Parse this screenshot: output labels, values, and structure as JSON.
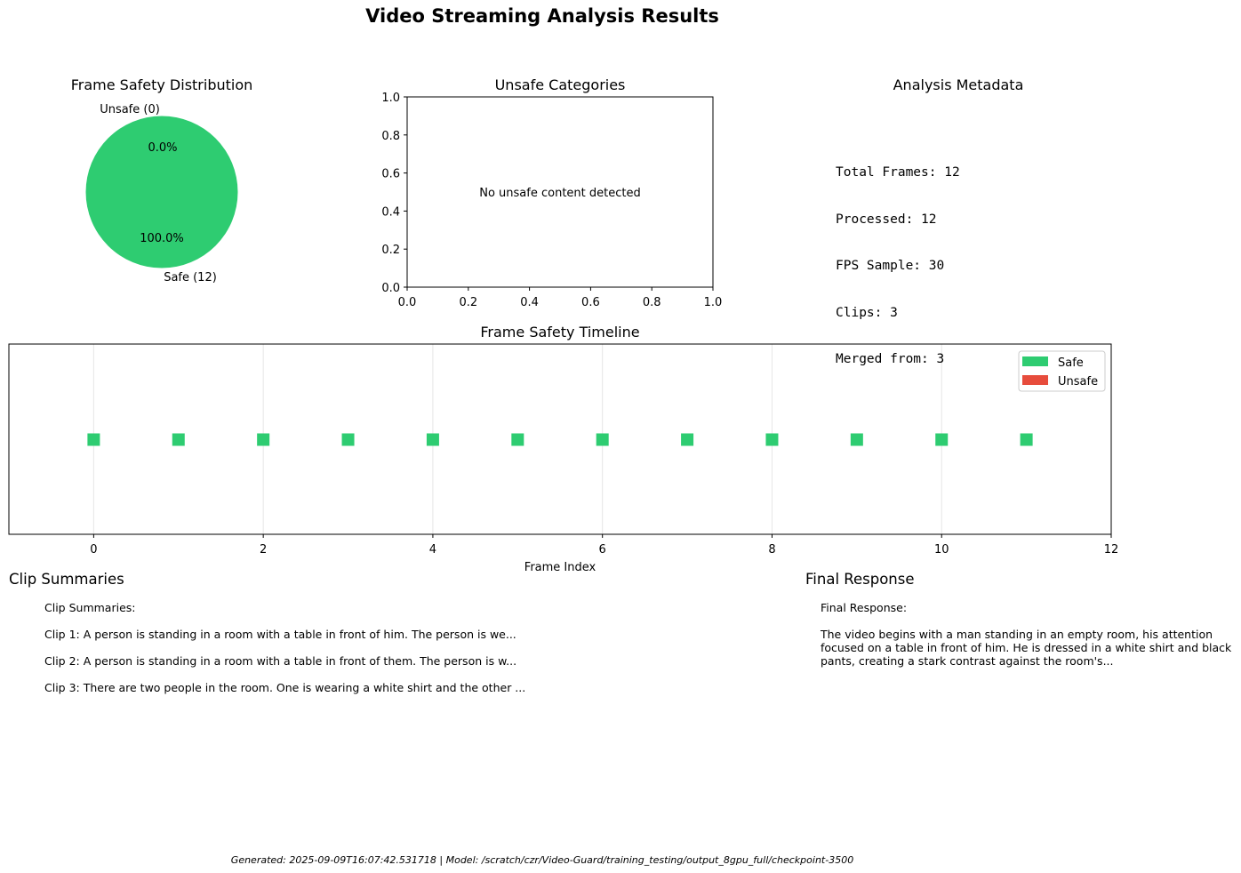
{
  "title": "Video Streaming Analysis Results",
  "colors": {
    "safe": "#2ecc71",
    "unsafe": "#e74c3c"
  },
  "pie": {
    "title": "Frame Safety Distribution",
    "labels": [
      "Unsafe (0)",
      "Safe (12)"
    ],
    "pct_labels": [
      "0.0%",
      "100.0%"
    ]
  },
  "categories_panel": {
    "title": "Unsafe Categories",
    "message": "No unsafe content detected",
    "xticks": [
      "0.0",
      "0.2",
      "0.4",
      "0.6",
      "0.8",
      "1.0"
    ],
    "yticks": [
      "0.0",
      "0.2",
      "0.4",
      "0.6",
      "0.8",
      "1.0"
    ]
  },
  "metadata": {
    "title": "Analysis Metadata",
    "lines": [
      "Total Frames: 12",
      "Processed: 12",
      "FPS Sample: 30",
      "Clips: 3",
      "Merged from: 3"
    ]
  },
  "timeline": {
    "title": "Frame Safety Timeline",
    "xlabel": "Frame Index",
    "xticks": [
      "0",
      "2",
      "4",
      "6",
      "8",
      "10",
      "12"
    ],
    "legend": [
      "Safe",
      "Unsafe"
    ]
  },
  "clip_summaries": {
    "heading": "Clip Summaries",
    "lines": [
      "Clip Summaries:",
      "Clip 1: A person is standing in a room with a table in front of him. The person is we...",
      "Clip 2: A person is standing in a room with a table in front of them. The person is w...",
      "Clip 3: There are two people in the room. One is wearing a white shirt and the other ..."
    ]
  },
  "final_response": {
    "heading": "Final Response",
    "label": "Final Response:",
    "lines": [
      "The video begins with a man standing in an empty room, his attention",
      "focused on a table in front of him. He is dressed in a white shirt and black",
      "pants, creating a stark contrast against the room's..."
    ]
  },
  "footer": "Generated: 2025-09-09T16:07:42.531718 | Model: /scratch/czr/Video-Guard/training_testing/output_8gpu_full/checkpoint-3500",
  "chart_data": [
    {
      "type": "pie",
      "title": "Frame Safety Distribution",
      "categories": [
        "Unsafe (0)",
        "Safe (12)"
      ],
      "values": [
        0,
        12
      ],
      "percent_labels": [
        "0.0%",
        "100.0%"
      ]
    },
    {
      "type": "bar",
      "title": "Unsafe Categories",
      "categories": [],
      "values": [],
      "xlim": [
        0,
        1
      ],
      "ylim": [
        0,
        1
      ],
      "annotation": "No unsafe content detected"
    },
    {
      "type": "scatter",
      "title": "Frame Safety Timeline",
      "xlabel": "Frame Index",
      "xlim": [
        -1,
        12
      ],
      "grid": true,
      "legend_position": "top-right",
      "series": [
        {
          "name": "Safe",
          "x": [
            0,
            1,
            2,
            3,
            4,
            5,
            6,
            7,
            8,
            9,
            10,
            11
          ],
          "y": [
            1,
            1,
            1,
            1,
            1,
            1,
            1,
            1,
            1,
            1,
            1,
            1
          ]
        },
        {
          "name": "Unsafe",
          "x": [],
          "y": []
        }
      ]
    }
  ]
}
